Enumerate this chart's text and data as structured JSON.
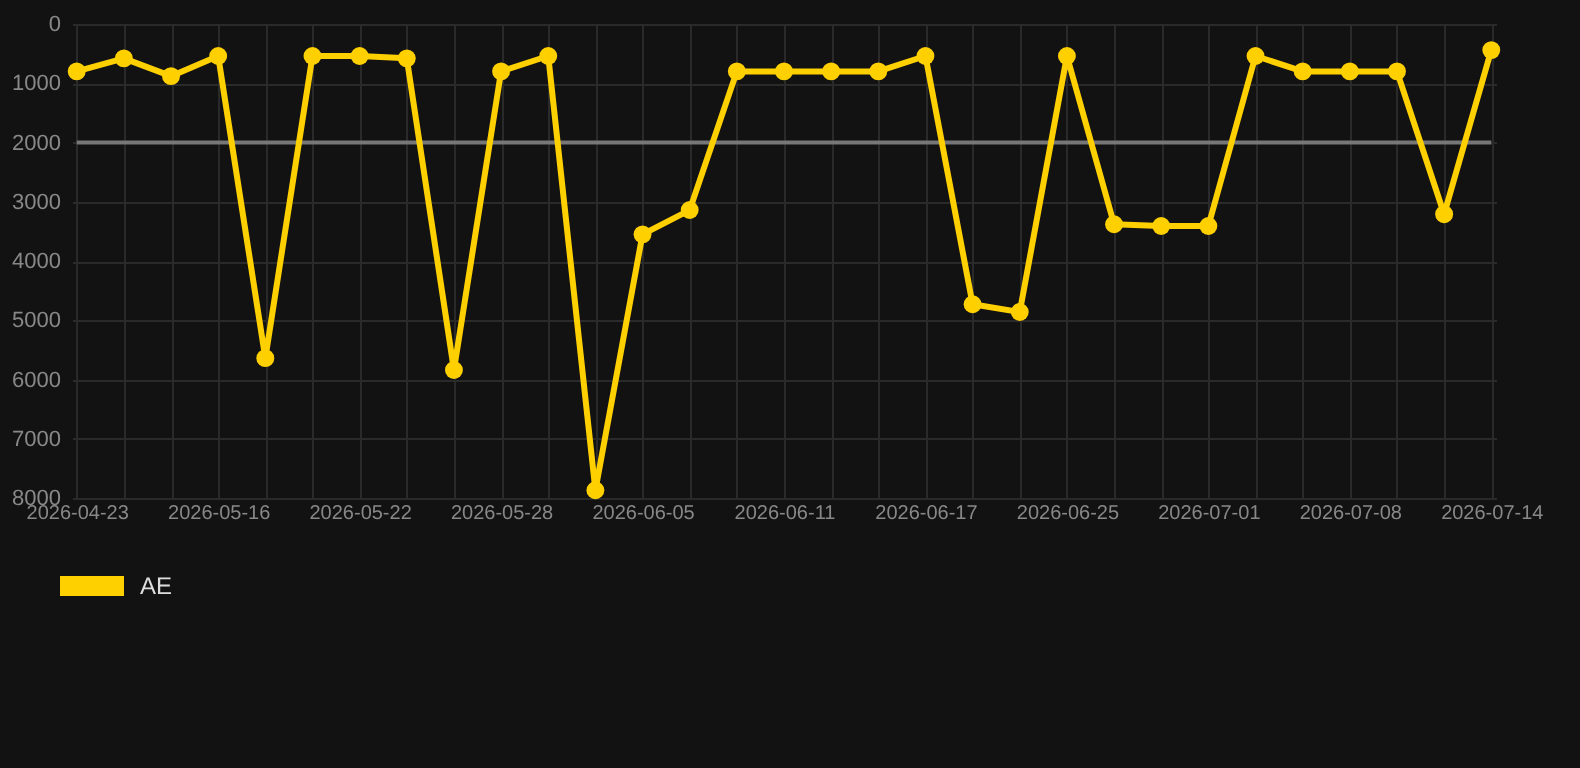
{
  "chart_data": {
    "type": "line",
    "categories": [
      "2026-04-23",
      null,
      null,
      "2026-05-16",
      null,
      null,
      "2026-05-22",
      null,
      null,
      "2026-05-28",
      null,
      null,
      "2026-06-05",
      null,
      null,
      "2026-06-11",
      null,
      null,
      "2026-06-17",
      null,
      null,
      "2026-06-25",
      null,
      null,
      "2026-07-01",
      null,
      null,
      "2026-07-08",
      null,
      null,
      "2026-07-14"
    ],
    "series": [
      {
        "name": "AE",
        "color": "#ffd000",
        "values": [
          800,
          580,
          880,
          540,
          5640,
          540,
          540,
          580,
          5840,
          800,
          540,
          7870,
          3550,
          3140,
          800,
          800,
          800,
          800,
          540,
          4730,
          4860,
          540,
          3380,
          3410,
          3410,
          540,
          800,
          800,
          800,
          3210,
          440
        ]
      }
    ],
    "ylim": [
      8000,
      0
    ],
    "yticks": [
      0,
      1000,
      2000,
      3000,
      4000,
      5000,
      6000,
      7000,
      8000
    ],
    "ref_lines": [
      {
        "axis": "y",
        "value": 2000,
        "color": "#777777"
      }
    ],
    "grid": true,
    "legend": "bottom",
    "marker": "circle",
    "line_style": "solid"
  }
}
